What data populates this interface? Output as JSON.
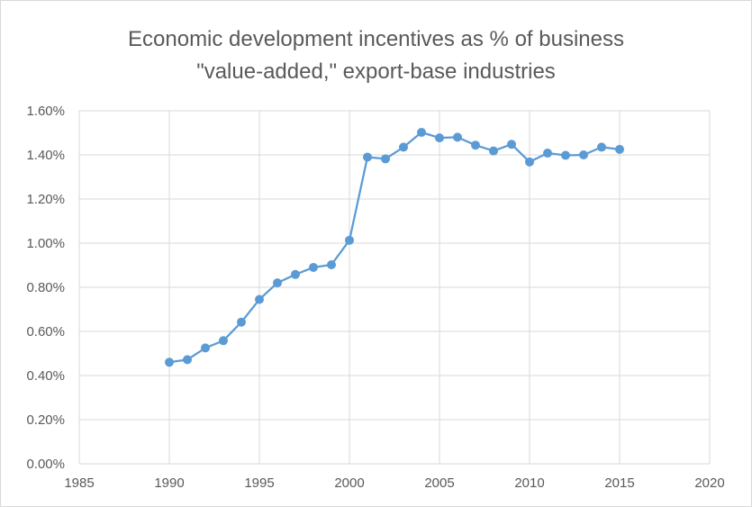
{
  "chart_data": {
    "type": "scatter",
    "title_lines": [
      "Economic development incentives as % of business",
      "\"value-added,\" export-base industries"
    ],
    "xlabel": "",
    "ylabel": "",
    "xlim": [
      1985,
      2020
    ],
    "ylim": [
      0,
      0.016
    ],
    "x_ticks": [
      1985,
      1990,
      1995,
      2000,
      2005,
      2010,
      2015,
      2020
    ],
    "x_tick_labels": [
      "1985",
      "1990",
      "1995",
      "2000",
      "2005",
      "2010",
      "2015",
      "2020"
    ],
    "y_ticks": [
      0,
      0.002,
      0.004,
      0.006,
      0.008,
      0.01,
      0.012,
      0.014,
      0.016
    ],
    "y_tick_labels": [
      "0.00%",
      "0.20%",
      "0.40%",
      "0.60%",
      "0.80%",
      "1.00%",
      "1.20%",
      "1.40%",
      "1.60%"
    ],
    "grid": true,
    "legend": "none",
    "series": [
      {
        "color": "#5b9bd5",
        "x": [
          1990,
          1991,
          1992,
          1993,
          1994,
          1995,
          1996,
          1997,
          1998,
          1999,
          2000,
          2001,
          2002,
          2003,
          2004,
          2005,
          2006,
          2007,
          2008,
          2009,
          2010,
          2011,
          2012,
          2013,
          2014,
          2015
        ],
        "y": [
          0.0046,
          0.00472,
          0.00525,
          0.00558,
          0.00642,
          0.00745,
          0.0082,
          0.00858,
          0.0089,
          0.00902,
          0.01013,
          0.0139,
          0.01382,
          0.01435,
          0.01502,
          0.01477,
          0.0148,
          0.01444,
          0.01418,
          0.01448,
          0.01368,
          0.01408,
          0.01398,
          0.014,
          0.01435,
          0.01425
        ]
      }
    ]
  }
}
